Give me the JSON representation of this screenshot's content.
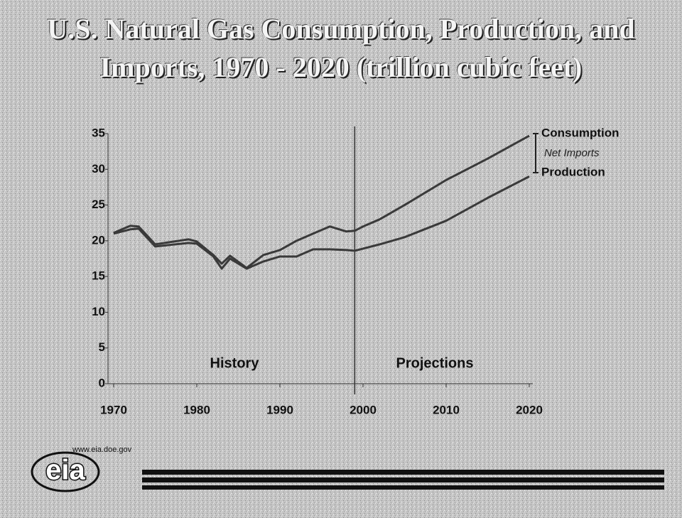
{
  "chart_data": {
    "type": "line",
    "title": "U.S. Natural Gas Consumption, Production, and Imports, 1970 - 2020 (trillion cubic feet)",
    "x": [
      1970,
      1972,
      1973,
      1975,
      1979,
      1980,
      1982,
      1983,
      1984,
      1986,
      1988,
      1990,
      1992,
      1994,
      1996,
      1998,
      1999,
      2000,
      2002,
      2005,
      2010,
      2015,
      2020
    ],
    "series": [
      {
        "name": "Consumption",
        "color": "#3a3a3a",
        "values": [
          21.1,
          22.1,
          22.0,
          19.5,
          20.2,
          19.9,
          18.0,
          16.8,
          17.9,
          16.2,
          18.0,
          18.7,
          20.0,
          21.0,
          22.0,
          21.3,
          21.4,
          22.0,
          23.0,
          25.0,
          28.5,
          31.5,
          34.7
        ]
      },
      {
        "name": "Production",
        "color": "#3a3a3a",
        "values": [
          21.0,
          21.6,
          21.7,
          19.2,
          19.7,
          19.6,
          17.8,
          16.1,
          17.5,
          16.1,
          17.1,
          17.8,
          17.8,
          18.8,
          18.8,
          18.7,
          18.6,
          18.9,
          19.5,
          20.5,
          22.8,
          26.0,
          29.0
        ]
      }
    ],
    "gap_label": "Net Imports",
    "projection_start": 1999,
    "annotations": [
      "History",
      "Projections"
    ],
    "xlim": [
      1970,
      2020
    ],
    "xticks": [
      1970,
      1980,
      1990,
      2000,
      2010,
      2020
    ],
    "ylim": [
      0,
      35
    ],
    "yticks": [
      0,
      5,
      10,
      15,
      20,
      25,
      30,
      35
    ]
  },
  "footer": {
    "url": "www.eia.doe.gov",
    "logo": "eia"
  }
}
